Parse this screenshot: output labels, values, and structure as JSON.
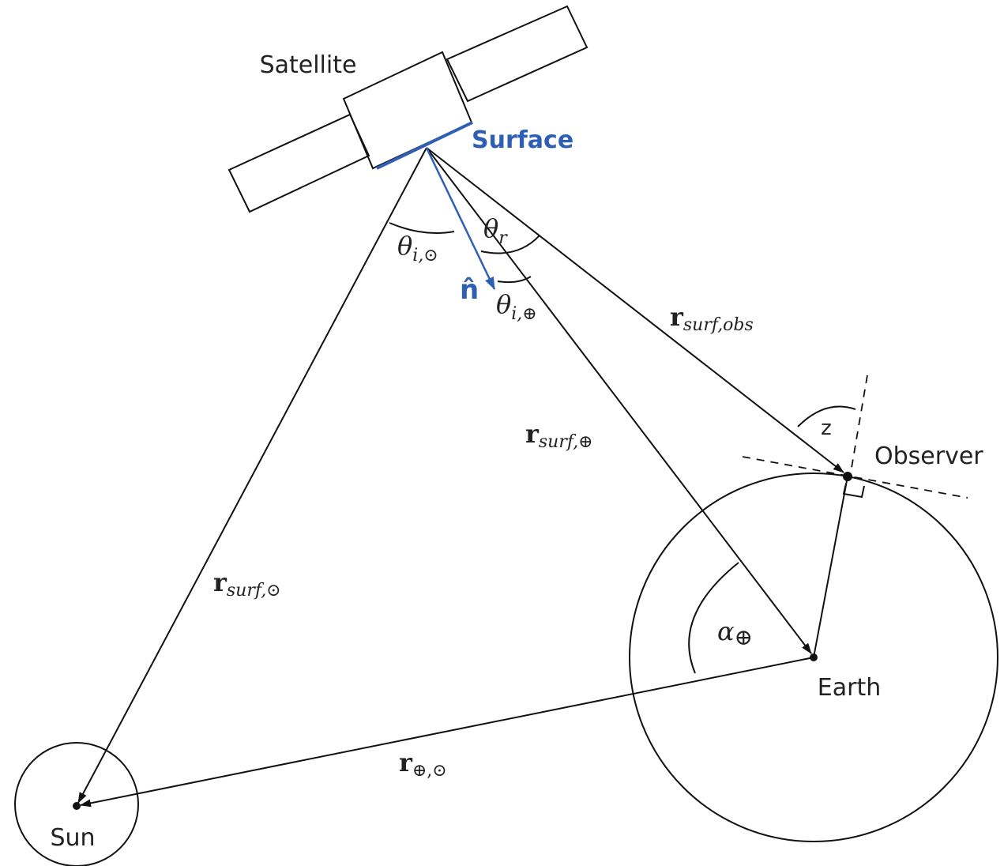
{
  "labels": {
    "satellite": "Satellite",
    "surface": "Surface",
    "normal": "n̂",
    "observer": "Observer",
    "earth": "Earth",
    "sun": "Sun",
    "zenith": "z"
  },
  "math": {
    "theta_i_sun": {
      "main": "θ",
      "sub": "i,⊙"
    },
    "theta_r": {
      "main": "θ",
      "sub": "r"
    },
    "theta_i_earth": {
      "main": "θ",
      "sub": "i,⊕"
    },
    "r_surf_obs": {
      "main": "r",
      "sub": "surf,obs"
    },
    "r_surf_earth": {
      "main": "r",
      "sub": "surf,⊕"
    },
    "r_surf_sun": {
      "main": "r",
      "sub": "surf,⊙"
    },
    "alpha_earth": {
      "main": "α",
      "sub": "⊕"
    },
    "r_earth_sun": {
      "main": "r",
      "sub": "⊕,⊙"
    }
  }
}
